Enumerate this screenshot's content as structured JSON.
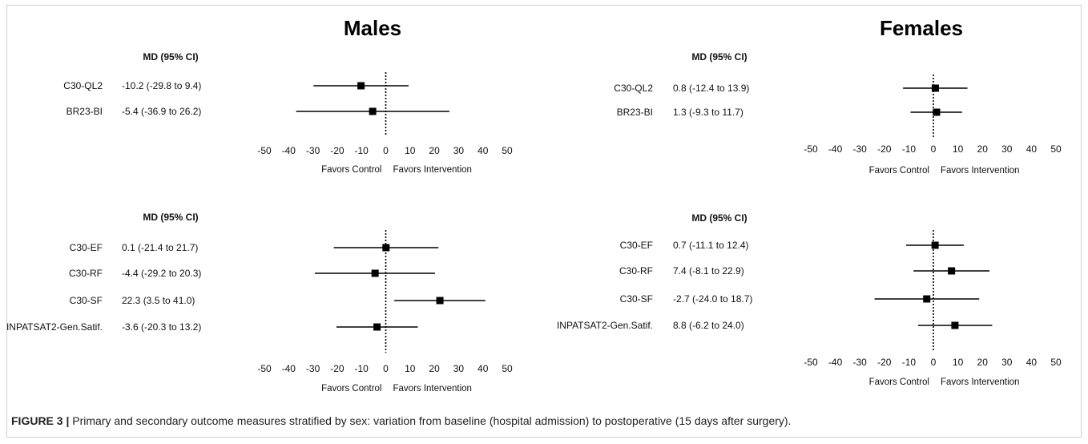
{
  "caption": {
    "label": "FIGURE 3 |",
    "text": " Primary and secondary outcome measures stratified by sex: variation from baseline (hospital admission) to postoperative (15 days after surgery)."
  },
  "group_titles": {
    "males": "Males",
    "females": "Females"
  },
  "column_header": "MD  (95% CI)",
  "favors": {
    "left": "Favors Control",
    "right": "Favors Intervention"
  },
  "chart_data": [
    {
      "type": "forest",
      "group": "Males",
      "panel": "primary",
      "header": "MD  (95% CI)",
      "xlim": [
        -50,
        50
      ],
      "ticks": [
        -50,
        -40,
        -30,
        -20,
        -10,
        0,
        10,
        20,
        30,
        40,
        50
      ],
      "reference_line": 0,
      "rows": [
        {
          "label": "C30-QL2",
          "text": "-10.2 (-29.8 to 9.4)",
          "md": -10.2,
          "lo": -29.8,
          "hi": 9.4
        },
        {
          "label": "BR23-BI",
          "text": "-5.4 (-36.9 to 26.2)",
          "md": -5.4,
          "lo": -36.9,
          "hi": 26.2
        }
      ]
    },
    {
      "type": "forest",
      "group": "Females",
      "panel": "primary",
      "header": "MD  (95% CI)",
      "xlim": [
        -50,
        50
      ],
      "ticks": [
        -50,
        -40,
        -30,
        -20,
        -10,
        0,
        10,
        20,
        30,
        40,
        50
      ],
      "reference_line": 0,
      "rows": [
        {
          "label": "C30-QL2",
          "text": "0.8 (-12.4 to 13.9)",
          "md": 0.8,
          "lo": -12.4,
          "hi": 13.9
        },
        {
          "label": "BR23-BI",
          "text": "1.3 (-9.3 to 11.7)",
          "md": 1.3,
          "lo": -9.3,
          "hi": 11.7
        }
      ]
    },
    {
      "type": "forest",
      "group": "Males",
      "panel": "secondary",
      "header": "MD  (95% CI)",
      "xlim": [
        -50,
        50
      ],
      "ticks": [
        -50,
        -40,
        -30,
        -20,
        -10,
        0,
        10,
        20,
        30,
        40,
        50
      ],
      "reference_line": 0,
      "rows": [
        {
          "label": "C30-EF",
          "text": "0.1 (-21.4 to 21.7)",
          "md": 0.1,
          "lo": -21.4,
          "hi": 21.7
        },
        {
          "label": "C30-RF",
          "text": "-4.4 (-29.2 to 20.3)",
          "md": -4.4,
          "lo": -29.2,
          "hi": 20.3
        },
        {
          "label": "C30-SF",
          "text": "22.3 (3.5 to 41.0)",
          "md": 22.3,
          "lo": 3.5,
          "hi": 41.0
        },
        {
          "label": "INPATSAT2-Gen.Satif.",
          "text": "-3.6 (-20.3 to 13.2)",
          "md": -3.6,
          "lo": -20.3,
          "hi": 13.2
        }
      ]
    },
    {
      "type": "forest",
      "group": "Females",
      "panel": "secondary",
      "header": "MD  (95% CI)",
      "xlim": [
        -50,
        50
      ],
      "ticks": [
        -50,
        -40,
        -30,
        -20,
        -10,
        0,
        10,
        20,
        30,
        40,
        50
      ],
      "reference_line": 0,
      "rows": [
        {
          "label": "C30-EF",
          "text": "0.7 (-11.1 to 12.4)",
          "md": 0.7,
          "lo": -11.1,
          "hi": 12.4
        },
        {
          "label": "C30-RF",
          "text": "7.4 (-8.1 to 22.9)",
          "md": 7.4,
          "lo": -8.1,
          "hi": 22.9
        },
        {
          "label": "C30-SF",
          "text": "-2.7 (-24.0 to 18.7)",
          "md": -2.7,
          "lo": -24.0,
          "hi": 18.7
        },
        {
          "label": "INPATSAT2-Gen.Satif.",
          "text": "8.8 (-6.2 to 24.0)",
          "md": 8.8,
          "lo": -6.2,
          "hi": 24.0
        }
      ]
    }
  ]
}
